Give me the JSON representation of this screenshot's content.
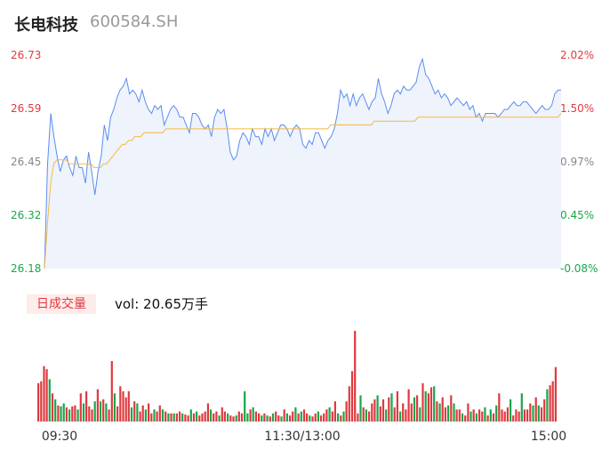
{
  "header": {
    "name": "长电科技",
    "code": "600584.SH"
  },
  "volume_panel": {
    "tab_label": "日成交量",
    "vol_text": "vol: 20.65万手"
  },
  "colors": {
    "price_line": "#5b8def",
    "avg_line": "#f5b942",
    "up": "#e0393e",
    "down": "#1aa64b",
    "neutral": "#888888",
    "fill": "#eef3fc"
  },
  "chart_data": [
    {
      "type": "line",
      "title": "",
      "y_left_ticks": [
        "26.73",
        "26.59",
        "26.45",
        "26.32",
        "26.18"
      ],
      "y_right_ticks": [
        "2.02%",
        "1.50%",
        "0.97%",
        "0.45%",
        "-0.08%"
      ],
      "ylim": [
        26.18,
        26.73
      ],
      "x_ticks": [
        "09:30",
        "11:30/13:00",
        "15:00"
      ],
      "series": [
        {
          "values": [
            26.18,
            26.45,
            26.58,
            26.52,
            26.47,
            26.43,
            26.46,
            26.47,
            26.44,
            26.42,
            26.47,
            26.44,
            26.44,
            26.4,
            26.48,
            26.43,
            26.37,
            26.43,
            26.47,
            26.55,
            26.51,
            26.57,
            26.59,
            26.62,
            26.64,
            26.65,
            26.67,
            26.63,
            26.64,
            26.63,
            26.61,
            26.64,
            26.61,
            26.59,
            26.58,
            26.6,
            26.59,
            26.6,
            26.55,
            26.57,
            26.59,
            26.6,
            26.59,
            26.57,
            26.57,
            26.55,
            26.53,
            26.58,
            26.58,
            26.57,
            26.55,
            26.54,
            26.55,
            26.52,
            26.57,
            26.59,
            26.58,
            26.59,
            26.54,
            26.48,
            26.46,
            26.47,
            26.51,
            26.53,
            26.52,
            26.5,
            26.54,
            26.52,
            26.52,
            26.5,
            26.54,
            26.52,
            26.54,
            26.51,
            26.53,
            26.55,
            26.55,
            26.54,
            26.52,
            26.54,
            26.55,
            26.54,
            26.5,
            26.49,
            26.51,
            26.5,
            26.53,
            26.53,
            26.51,
            26.49,
            26.51,
            26.52,
            26.54,
            26.58,
            26.64,
            26.62,
            26.63,
            26.6,
            26.63,
            26.6,
            26.62,
            26.63,
            26.61,
            26.59,
            26.61,
            26.62,
            26.67,
            26.63,
            26.61,
            26.58,
            26.6,
            26.63,
            26.64,
            26.63,
            26.65,
            26.64,
            26.64,
            26.65,
            26.66,
            26.7,
            26.72,
            26.68,
            26.67,
            26.65,
            26.63,
            26.64,
            26.62,
            26.63,
            26.62,
            26.6,
            26.61,
            26.62,
            26.61,
            26.6,
            26.61,
            26.59,
            26.6,
            26.57,
            26.58,
            26.56,
            26.58,
            26.58,
            26.58,
            26.58,
            26.57,
            26.58,
            26.59,
            26.59,
            26.6,
            26.61,
            26.6,
            26.6,
            26.61,
            26.61,
            26.6,
            26.59,
            26.58,
            26.59,
            26.6,
            26.59,
            26.59,
            26.6,
            26.63,
            26.64,
            26.64
          ]
        },
        {
          "values": [
            26.18,
            26.3,
            26.4,
            26.45,
            26.46,
            26.46,
            26.46,
            26.46,
            26.45,
            26.45,
            26.45,
            26.45,
            26.45,
            26.45,
            26.45,
            26.45,
            26.44,
            26.44,
            26.44,
            26.45,
            26.45,
            26.46,
            26.47,
            26.48,
            26.49,
            26.5,
            26.5,
            26.51,
            26.51,
            26.52,
            26.52,
            26.52,
            26.53,
            26.53,
            26.53,
            26.53,
            26.53,
            26.53,
            26.53,
            26.54,
            26.54,
            26.54,
            26.54,
            26.54,
            26.54,
            26.54,
            26.54,
            26.54,
            26.54,
            26.54,
            26.54,
            26.54,
            26.54,
            26.54,
            26.54,
            26.54,
            26.54,
            26.54,
            26.54,
            26.54,
            26.54,
            26.54,
            26.54,
            26.54,
            26.54,
            26.54,
            26.54,
            26.54,
            26.54,
            26.54,
            26.54,
            26.54,
            26.54,
            26.54,
            26.54,
            26.54,
            26.54,
            26.54,
            26.54,
            26.54,
            26.54,
            26.54,
            26.54,
            26.54,
            26.54,
            26.54,
            26.54,
            26.54,
            26.54,
            26.54,
            26.54,
            26.54,
            26.55,
            26.55,
            26.55,
            26.55,
            26.55,
            26.55,
            26.55,
            26.55,
            26.55,
            26.55,
            26.55,
            26.55,
            26.55,
            26.55,
            26.56,
            26.56,
            26.56,
            26.56,
            26.56,
            26.56,
            26.56,
            26.56,
            26.56,
            26.56,
            26.56,
            26.56,
            26.56,
            26.56,
            26.57,
            26.57,
            26.57,
            26.57,
            26.57,
            26.57,
            26.57,
            26.57,
            26.57,
            26.57,
            26.57,
            26.57,
            26.57,
            26.57,
            26.57,
            26.57,
            26.57,
            26.57,
            26.57,
            26.57,
            26.57,
            26.57,
            26.57,
            26.57,
            26.57,
            26.57,
            26.57,
            26.57,
            26.57,
            26.57,
            26.57,
            26.57,
            26.57,
            26.57,
            26.57,
            26.57,
            26.57,
            26.57,
            26.57,
            26.57,
            26.57,
            26.57,
            26.57,
            26.57,
            26.57,
            26.57,
            26.58
          ]
        }
      ]
    },
    {
      "type": "bar",
      "title": "",
      "series": [
        {
          "values": [
            38,
            40,
            55,
            52,
            42,
            28,
            22,
            16,
            15,
            18,
            14,
            12,
            15,
            16,
            12,
            28,
            18,
            30,
            15,
            12,
            20,
            32,
            20,
            22,
            18,
            12,
            60,
            28,
            15,
            35,
            30,
            24,
            30,
            14,
            20,
            18,
            10,
            16,
            12,
            18,
            8,
            12,
            10,
            16,
            12,
            10,
            8,
            8,
            8,
            8,
            10,
            8,
            7,
            6,
            12,
            8,
            10,
            6,
            8,
            10,
            18,
            12,
            8,
            10,
            6,
            14,
            10,
            8,
            6,
            5,
            6,
            10,
            8,
            30,
            8,
            12,
            14,
            10,
            8,
            6,
            8,
            6,
            5,
            8,
            10,
            6,
            5,
            12,
            8,
            6,
            10,
            14,
            8,
            10,
            12,
            8,
            6,
            5,
            8,
            10,
            6,
            8,
            12,
            14,
            10,
            20,
            8,
            6,
            10,
            20,
            35,
            50,
            90,
            8,
            26,
            14,
            12,
            10,
            18,
            22,
            26,
            15,
            22,
            12,
            24,
            28,
            14,
            30,
            10,
            18,
            12,
            32,
            18,
            24,
            26,
            14,
            38,
            30,
            28,
            34,
            35,
            20,
            18,
            24,
            14,
            16,
            26,
            18,
            12,
            12,
            8,
            6,
            18,
            10,
            12,
            8,
            12,
            10,
            14,
            6,
            12,
            8,
            16,
            28,
            12,
            10,
            14,
            22,
            6,
            12,
            10,
            28,
            12,
            12,
            18,
            16,
            24,
            16,
            14,
            22,
            32,
            36,
            40,
            54
          ],
          "colors": [
            "up",
            "up",
            "up",
            "up",
            "down",
            "up",
            "down",
            "up",
            "down",
            "down",
            "up",
            "down",
            "up",
            "up",
            "down",
            "up",
            "down",
            "up",
            "up",
            "up",
            "down",
            "up",
            "down",
            "up",
            "down",
            "up",
            "up",
            "down",
            "up",
            "up",
            "up",
            "up",
            "up",
            "down",
            "up",
            "down",
            "up",
            "up",
            "down",
            "up",
            "up",
            "down",
            "up",
            "up",
            "down",
            "up",
            "down",
            "up",
            "down",
            "up",
            "up",
            "down",
            "up",
            "up",
            "down",
            "up",
            "down",
            "up",
            "up",
            "up",
            "up",
            "down",
            "up",
            "up",
            "down",
            "up",
            "up",
            "down",
            "up",
            "up",
            "down",
            "up",
            "up",
            "down",
            "down",
            "up",
            "down",
            "up",
            "up",
            "down",
            "up",
            "down",
            "up",
            "down",
            "up",
            "up",
            "down",
            "up",
            "down",
            "up",
            "up",
            "down",
            "up",
            "down",
            "up",
            "up",
            "down",
            "up",
            "up",
            "down",
            "up",
            "up",
            "up",
            "down",
            "up",
            "up",
            "down",
            "up",
            "down",
            "up",
            "up",
            "up",
            "up",
            "up",
            "down",
            "up",
            "down",
            "up",
            "up",
            "up",
            "down",
            "up",
            "up",
            "down",
            "up",
            "down",
            "up",
            "up",
            "down",
            "up",
            "up",
            "up",
            "up",
            "down",
            "up",
            "down",
            "up",
            "down",
            "up",
            "up",
            "down",
            "up",
            "down",
            "up",
            "up",
            "down",
            "up",
            "down",
            "up",
            "up",
            "down",
            "up",
            "up",
            "down",
            "up",
            "down",
            "up",
            "up",
            "down",
            "up",
            "down",
            "up",
            "down",
            "up",
            "up",
            "up",
            "up",
            "down",
            "up",
            "up",
            "up",
            "down",
            "up",
            "up",
            "up",
            "down",
            "up",
            "down",
            "up",
            "up",
            "down",
            "up",
            "up",
            "up",
            "up",
            "up",
            "up",
            "up"
          ]
        }
      ]
    }
  ]
}
